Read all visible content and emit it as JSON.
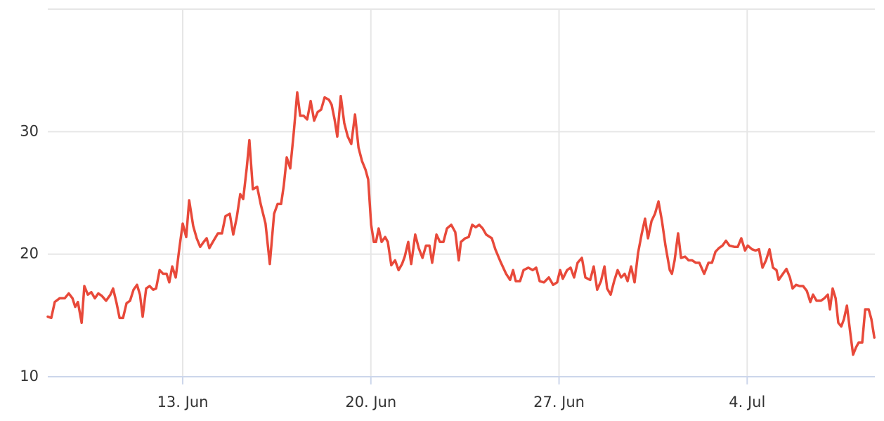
{
  "chart_data": {
    "type": "line",
    "xlim": [
      7.98,
      38.75
    ],
    "xticks": [
      {
        "value": 13,
        "label": "13. Jun"
      },
      {
        "value": 20,
        "label": "20. Jun"
      },
      {
        "value": 27,
        "label": "27. Jun"
      },
      {
        "value": 34,
        "label": "4. Jul"
      }
    ],
    "ylim": [
      10,
      40
    ],
    "yticks": [
      10,
      20,
      30
    ],
    "grid": true,
    "series": [
      {
        "color": "#e8493a",
        "x": [
          7.98,
          8.11,
          8.24,
          8.42,
          8.61,
          8.76,
          8.9,
          9.0,
          9.1,
          9.24,
          9.34,
          9.47,
          9.6,
          9.73,
          9.86,
          9.99,
          10.15,
          10.31,
          10.41,
          10.54,
          10.65,
          10.78,
          10.91,
          11.04,
          11.17,
          11.3,
          11.41,
          11.51,
          11.64,
          11.77,
          11.9,
          12.01,
          12.14,
          12.27,
          12.4,
          12.5,
          12.61,
          12.74,
          12.87,
          13.0,
          13.13,
          13.24,
          13.39,
          13.52,
          13.65,
          13.78,
          13.89,
          13.99,
          14.12,
          14.31,
          14.46,
          14.59,
          14.75,
          14.88,
          15.01,
          15.14,
          15.25,
          15.38,
          15.48,
          15.61,
          15.77,
          15.9,
          16.08,
          16.24,
          16.4,
          16.53,
          16.66,
          16.76,
          16.87,
          17.0,
          17.13,
          17.26,
          17.37,
          17.5,
          17.63,
          17.76,
          17.89,
          18.02,
          18.15,
          18.28,
          18.44,
          18.54,
          18.65,
          18.75,
          18.88,
          19.01,
          19.14,
          19.27,
          19.41,
          19.54,
          19.67,
          19.8,
          19.9,
          20.01,
          20.11,
          20.19,
          20.29,
          20.4,
          20.53,
          20.63,
          20.76,
          20.9,
          21.03,
          21.16,
          21.26,
          21.39,
          21.5,
          21.65,
          21.78,
          21.92,
          22.05,
          22.18,
          22.28,
          22.44,
          22.57,
          22.7,
          22.83,
          22.99,
          23.14,
          23.27,
          23.35,
          23.51,
          23.64,
          23.77,
          23.9,
          24.03,
          24.16,
          24.29,
          24.5,
          24.63,
          24.82,
          25.03,
          25.18,
          25.29,
          25.39,
          25.55,
          25.68,
          25.86,
          26.02,
          26.15,
          26.28,
          26.44,
          26.62,
          26.78,
          26.93,
          27.04,
          27.14,
          27.3,
          27.43,
          27.56,
          27.69,
          27.85,
          27.98,
          28.16,
          28.29,
          28.42,
          28.56,
          28.69,
          28.79,
          28.92,
          29.05,
          29.18,
          29.31,
          29.44,
          29.55,
          29.68,
          29.81,
          29.94,
          30.07,
          30.2,
          30.31,
          30.44,
          30.57,
          30.7,
          30.83,
          30.96,
          31.12,
          31.2,
          31.3,
          31.43,
          31.54,
          31.69,
          31.82,
          31.95,
          32.09,
          32.22,
          32.4,
          32.56,
          32.69,
          32.82,
          32.95,
          33.08,
          33.21,
          33.34,
          33.52,
          33.65,
          33.78,
          33.92,
          34.02,
          34.18,
          34.31,
          34.44,
          34.57,
          34.7,
          34.83,
          34.96,
          35.09,
          35.17,
          35.33,
          35.46,
          35.59,
          35.69,
          35.82,
          35.95,
          36.08,
          36.22,
          36.35,
          36.45,
          36.58,
          36.74,
          36.87,
          37.0,
          37.08,
          37.18,
          37.29,
          37.39,
          37.5,
          37.6,
          37.71,
          37.84,
          37.94,
          38.05,
          38.15,
          38.28,
          38.39,
          38.52,
          38.62,
          38.73
        ],
        "values": [
          14.9,
          14.8,
          16.1,
          16.4,
          16.4,
          16.8,
          16.4,
          15.7,
          16.1,
          14.4,
          17.4,
          16.7,
          16.9,
          16.4,
          16.8,
          16.6,
          16.2,
          16.7,
          17.2,
          16.0,
          14.8,
          14.8,
          16.0,
          16.2,
          17.1,
          17.5,
          16.7,
          14.9,
          17.2,
          17.4,
          17.1,
          17.2,
          18.7,
          18.4,
          18.4,
          17.7,
          19.0,
          18.1,
          20.4,
          22.5,
          21.4,
          24.4,
          22.3,
          21.3,
          20.6,
          21.0,
          21.3,
          20.5,
          21.0,
          21.7,
          21.7,
          23.1,
          23.3,
          21.6,
          23.0,
          24.9,
          24.5,
          27.0,
          29.3,
          25.3,
          25.5,
          24.1,
          22.5,
          19.2,
          23.3,
          24.1,
          24.1,
          25.6,
          27.9,
          27.0,
          29.9,
          33.2,
          31.3,
          31.3,
          31.0,
          32.5,
          30.9,
          31.6,
          31.8,
          32.8,
          32.6,
          32.2,
          31.0,
          29.6,
          32.9,
          30.7,
          29.6,
          29.0,
          31.4,
          28.7,
          27.6,
          26.9,
          26.1,
          22.4,
          21.0,
          21.0,
          22.1,
          21.0,
          21.4,
          21.0,
          19.1,
          19.5,
          18.7,
          19.2,
          19.8,
          21.0,
          19.2,
          21.6,
          20.5,
          19.7,
          20.7,
          20.7,
          19.3,
          21.6,
          21.0,
          21.0,
          22.1,
          22.4,
          21.8,
          19.5,
          21.0,
          21.3,
          21.4,
          22.4,
          22.2,
          22.4,
          22.1,
          21.6,
          21.3,
          20.4,
          19.4,
          18.4,
          17.9,
          18.7,
          17.8,
          17.8,
          18.7,
          18.9,
          18.7,
          18.9,
          17.8,
          17.7,
          18.1,
          17.5,
          17.7,
          18.7,
          18.0,
          18.7,
          18.9,
          18.1,
          19.3,
          19.7,
          18.1,
          17.9,
          19.0,
          17.1,
          17.8,
          19.0,
          17.2,
          16.7,
          17.8,
          18.7,
          18.1,
          18.4,
          17.8,
          19.0,
          17.7,
          20.1,
          21.6,
          22.9,
          21.3,
          22.7,
          23.3,
          24.3,
          22.7,
          20.7,
          18.7,
          18.4,
          19.5,
          21.7,
          19.7,
          19.8,
          19.5,
          19.5,
          19.3,
          19.3,
          18.4,
          19.3,
          19.3,
          20.2,
          20.5,
          20.7,
          21.1,
          20.7,
          20.6,
          20.6,
          21.3,
          20.3,
          20.7,
          20.4,
          20.3,
          20.4,
          18.9,
          19.5,
          20.4,
          18.9,
          18.7,
          17.9,
          18.4,
          18.8,
          18.1,
          17.2,
          17.5,
          17.4,
          17.4,
          17.0,
          16.1,
          16.7,
          16.2,
          16.2,
          16.4,
          16.7,
          15.5,
          17.2,
          16.4,
          14.4,
          14.1,
          14.7,
          15.8,
          13.5,
          11.8,
          12.4,
          12.8,
          12.8,
          15.5,
          15.5,
          14.7,
          13.2
        ]
      }
    ]
  }
}
